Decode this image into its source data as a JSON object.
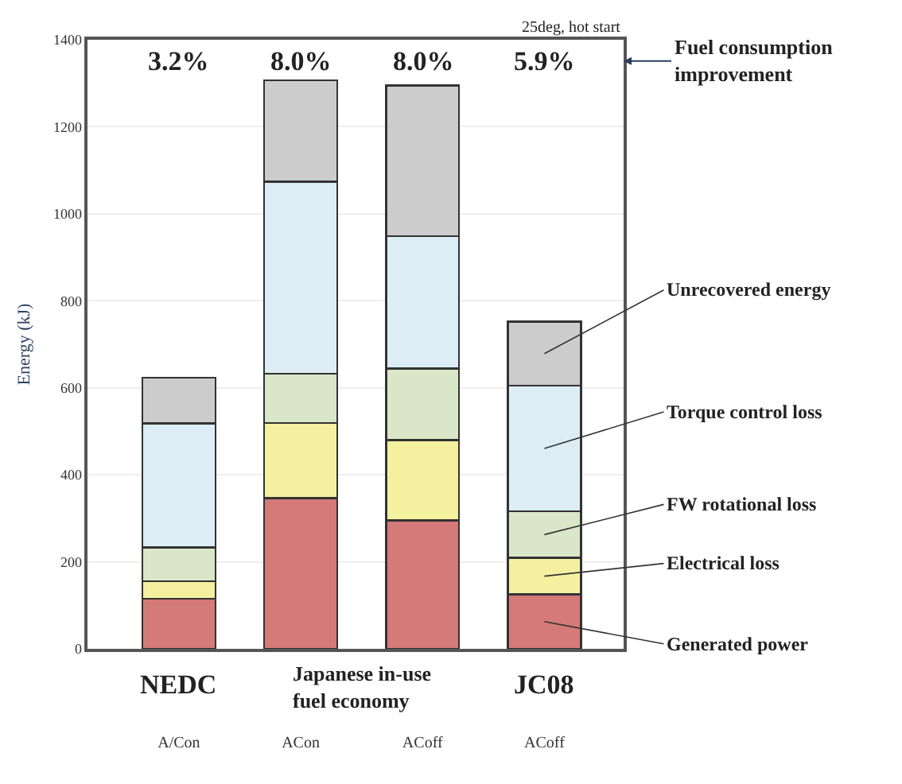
{
  "chart_data": {
    "type": "bar",
    "stacked": true,
    "ylabel": "Energy (kJ)",
    "categories": [
      "A/Con",
      "ACon",
      "ACoff",
      "ACoff"
    ],
    "series": [
      {
        "name": "Generated power",
        "color": "#d47a78",
        "values": [
          115,
          346,
          295,
          125
        ]
      },
      {
        "name": "Electrical loss",
        "color": "#f5f0a0",
        "values": [
          40,
          173,
          185,
          84
        ]
      },
      {
        "name": "FW rotational loss",
        "color": "#d9e6c8",
        "values": [
          78,
          113,
          164,
          107
        ]
      },
      {
        "name": "Torque control loss",
        "color": "#dcedf5",
        "values": [
          285,
          442,
          305,
          289
        ]
      },
      {
        "name": "Unrecovered energy",
        "color": "#cccccc",
        "values": [
          105,
          233,
          346,
          147
        ]
      }
    ],
    "ylim": [
      0,
      1400
    ],
    "yticks": [
      0,
      200,
      400,
      600,
      800,
      1000,
      1200,
      1400
    ],
    "grid": "y",
    "legend": false,
    "annotations": [
      "3.2%",
      "8.0%",
      "8.0%",
      "5.9%",
      "25deg, hot start",
      "Fuel consumption\nimprovement",
      "NEDC",
      "Japanese in-use\nfuel economy",
      "JC08"
    ]
  }
}
